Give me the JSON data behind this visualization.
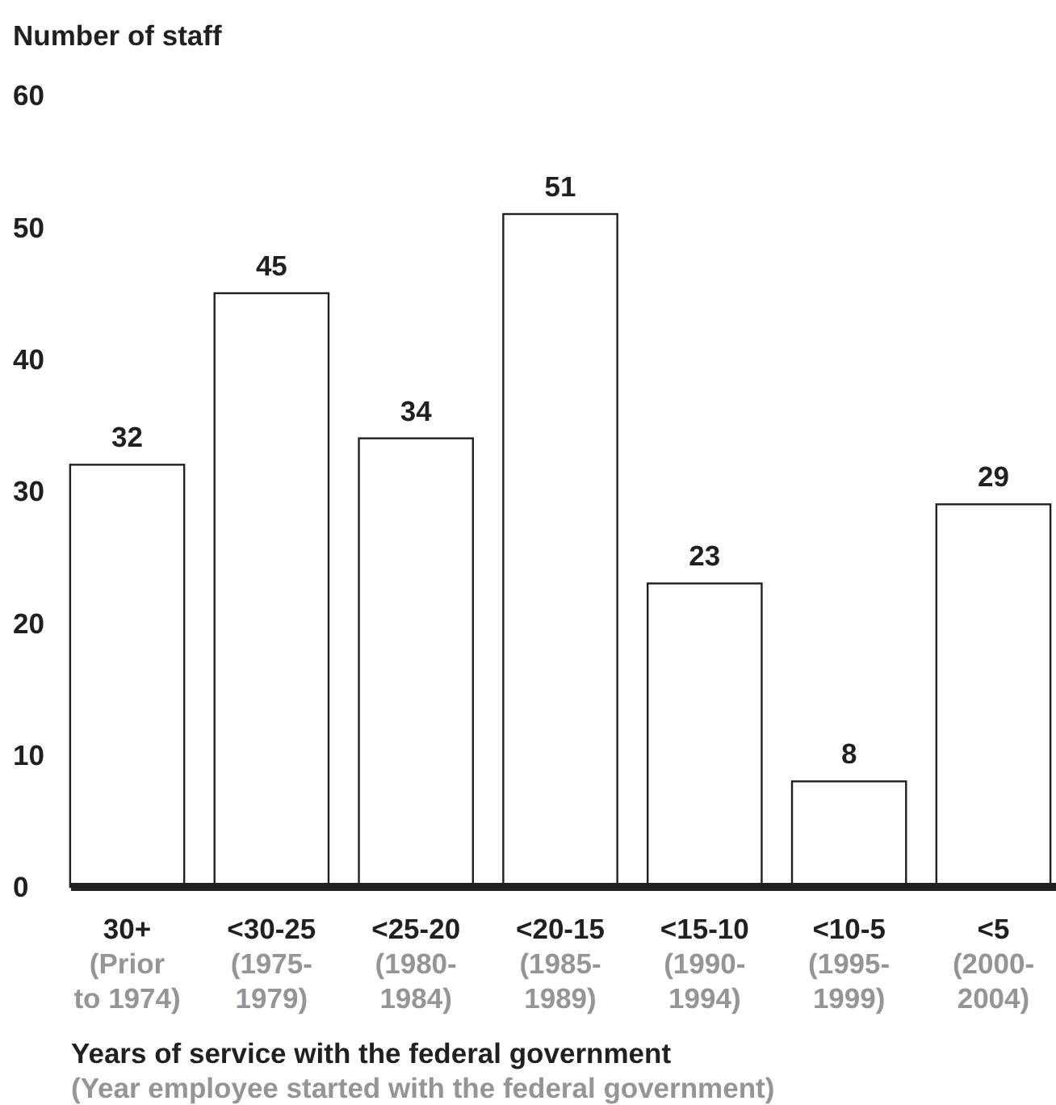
{
  "chart_data": {
    "type": "bar",
    "ylabel": "Number of staff",
    "xlabel": "Years of service with the federal government\n(Year employee started with the federal government)",
    "categories": [
      "30+\n(Prior\nto 1974)",
      "<30-25\n(1975-\n1979)",
      "<25-20\n(1980-\n1984)",
      "<20-15\n(1985-\n1989)",
      "<15-10\n(1990-\n1994)",
      "<10-5\n(1995-\n1999)",
      "<5\n(2000-\n2004)"
    ],
    "values": [
      32,
      45,
      34,
      51,
      23,
      8,
      29
    ],
    "color": "#ffffff",
    "ylim": [
      0,
      60
    ],
    "yticks": [
      0,
      10,
      20,
      30,
      40,
      50,
      60
    ],
    "data_labels": true
  }
}
